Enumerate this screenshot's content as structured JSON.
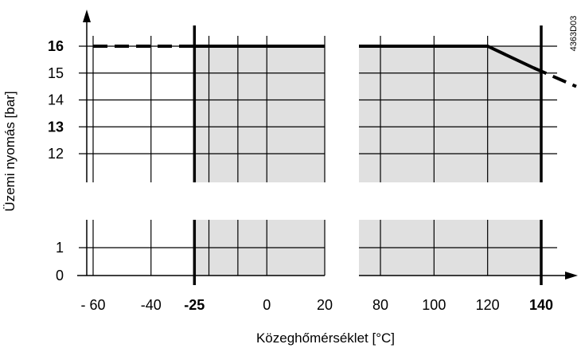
{
  "chart_data": {
    "type": "line",
    "title": "",
    "code_label": "4363D03",
    "xlabel": "Közeghőmérséklet [°C]",
    "ylabel": "Üzemi nyomás [bar]",
    "x_axis_breaks": [
      "between 20 and 80"
    ],
    "y_axis_breaks": [
      "between 1 and 12"
    ],
    "xlim": [
      -60,
      140
    ],
    "ylim": [
      0,
      16
    ],
    "x_ticks": [
      {
        "value": -60,
        "label": "- 60",
        "bold": false
      },
      {
        "value": -40,
        "label": "-40",
        "bold": false
      },
      {
        "value": -25,
        "label": "-25",
        "bold": true
      },
      {
        "value": 0,
        "label": "0",
        "bold": false
      },
      {
        "value": 20,
        "label": "20",
        "bold": false
      },
      {
        "value": 80,
        "label": "80",
        "bold": false
      },
      {
        "value": 100,
        "label": "100",
        "bold": false
      },
      {
        "value": 120,
        "label": "120",
        "bold": false
      },
      {
        "value": 140,
        "label": "140",
        "bold": true
      }
    ],
    "y_ticks": [
      {
        "value": 16,
        "label": "16",
        "bold": true
      },
      {
        "value": 15,
        "label": "15",
        "bold": false
      },
      {
        "value": 14,
        "label": "14",
        "bold": false
      },
      {
        "value": 13,
        "label": "13",
        "bold": true
      },
      {
        "value": 12,
        "label": "12",
        "bold": false
      },
      {
        "value": 1,
        "label": "1",
        "bold": false
      },
      {
        "value": 0,
        "label": "0",
        "bold": false
      }
    ],
    "grid": true,
    "shaded_region": {
      "x": [
        -25,
        140
      ],
      "y": [
        0,
        16
      ],
      "color": "#e0e0e0"
    },
    "limit_lines_x": [
      -25,
      140
    ],
    "series": [
      {
        "style": "solid",
        "points": [
          [
            -25,
            16
          ],
          [
            120,
            16
          ],
          [
            137,
            15.2
          ]
        ]
      },
      {
        "style": "dashed",
        "points": [
          [
            -60,
            16
          ],
          [
            -25,
            16
          ]
        ]
      },
      {
        "style": "dashed",
        "points": [
          [
            137,
            15.2
          ],
          [
            150,
            14.5
          ]
        ]
      }
    ]
  }
}
